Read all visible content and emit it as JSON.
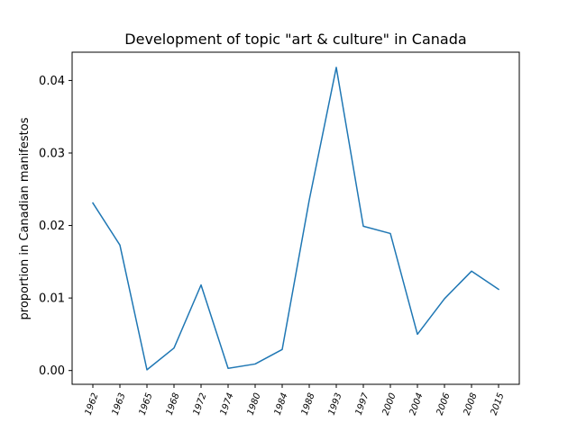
{
  "chart_data": {
    "type": "line",
    "title": "Development of topic \"art & culture\" in Canada",
    "xlabel": "",
    "ylabel": "proportion in Canadian manifestos",
    "categories": [
      "1962",
      "1963",
      "1965",
      "1968",
      "1972",
      "1974",
      "1980",
      "1984",
      "1988",
      "1993",
      "1997",
      "2000",
      "2004",
      "2006",
      "2008",
      "2015"
    ],
    "series": [
      {
        "values": [
          0.0231,
          0.0173,
          0.0001,
          0.0031,
          0.0118,
          0.0003,
          0.0009,
          0.0029,
          0.0235,
          0.0418,
          0.0199,
          0.0189,
          0.005,
          0.0099,
          0.0137,
          0.0112
        ],
        "color": "#1f77b4"
      }
    ],
    "ylim": [
      -0.0019,
      0.0439
    ],
    "yticks": [
      0.0,
      0.01,
      0.02,
      0.03,
      0.04
    ],
    "ytick_labels": [
      "0.00",
      "0.01",
      "0.02",
      "0.03",
      "0.04"
    ],
    "grid": false,
    "legend": "none"
  }
}
